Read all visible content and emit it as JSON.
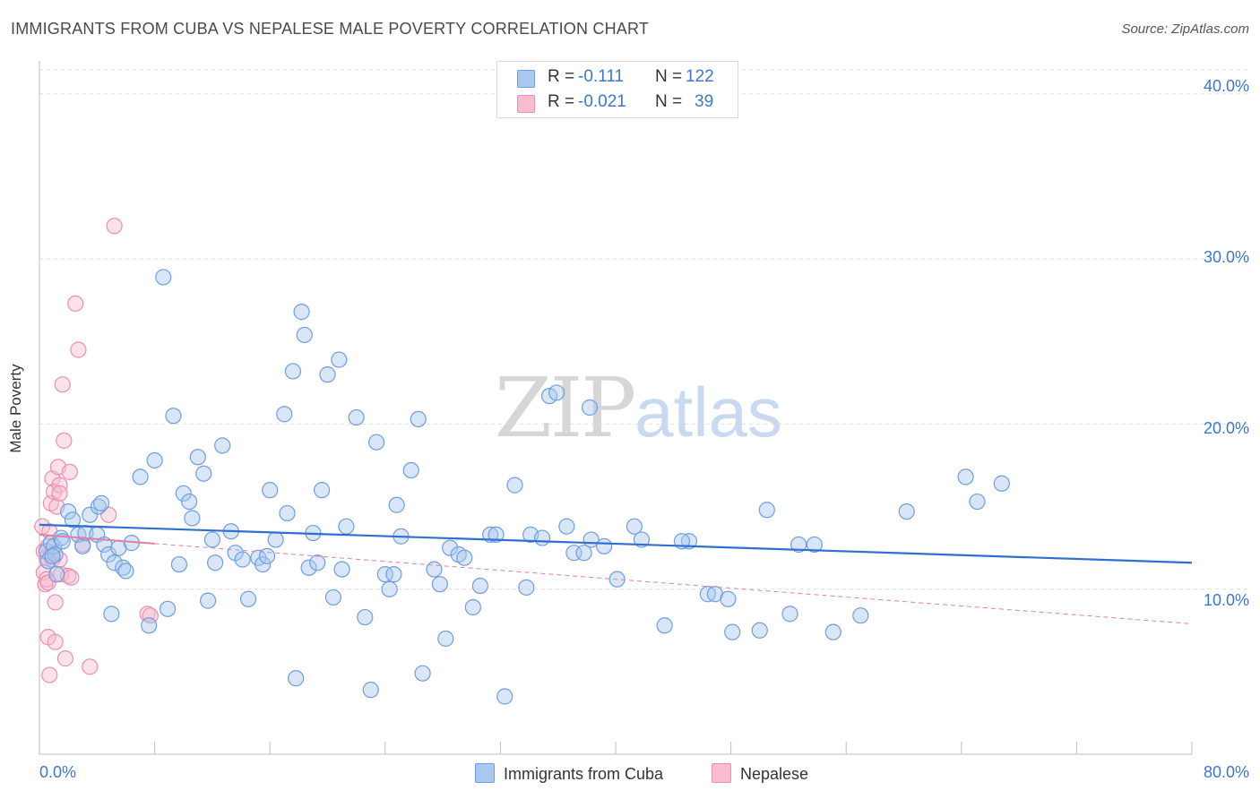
{
  "header": {
    "title": "IMMIGRANTS FROM CUBA VS NEPALESE MALE POVERTY CORRELATION CHART",
    "source": "Source: ZipAtlas.com"
  },
  "watermark": {
    "part1": "ZIP",
    "part2": "atlas"
  },
  "legend": {
    "r_label": "R =",
    "n_label": "N =",
    "series": [
      {
        "name": "Immigrants from Cuba",
        "r": "-0.111",
        "n": "122",
        "fill": "#a9c8f0",
        "stroke": "#6e9ee0"
      },
      {
        "name": "Nepalese",
        "r": "-0.021",
        "n": "39",
        "fill": "#f7bccf",
        "stroke": "#ec8fb0"
      }
    ]
  },
  "colors": {
    "blue_line": "#2f6fcf",
    "pink_line": "#e37fa0",
    "tick_text": "#3d78c9",
    "grid": "#dddddd"
  },
  "chart_data": {
    "type": "scatter",
    "title": "IMMIGRANTS FROM CUBA VS NEPALESE MALE POVERTY CORRELATION CHART",
    "xlabel": "",
    "ylabel": "Male Poverty",
    "xlim": [
      0,
      80
    ],
    "ylim": [
      0,
      42
    ],
    "x_tick_labels": [
      "0.0%",
      "80.0%"
    ],
    "y_ticks": [
      10,
      20,
      30,
      40
    ],
    "y_tick_labels": [
      "10.0%",
      "20.0%",
      "30.0%",
      "40.0%"
    ],
    "grid": true,
    "series": [
      {
        "name": "Immigrants from Cuba",
        "trend": {
          "x": [
            0,
            80
          ],
          "y": [
            13.9,
            11.6
          ]
        },
        "points": [
          [
            0.5,
            12.3
          ],
          [
            0.6,
            11.7
          ],
          [
            0.8,
            12.8
          ],
          [
            1.0,
            12.6
          ],
          [
            1.1,
            12.1
          ],
          [
            1.2,
            10.9
          ],
          [
            1.5,
            13.1
          ],
          [
            1.6,
            12.9
          ],
          [
            2.0,
            14.7
          ],
          [
            2.3,
            14.2
          ],
          [
            2.7,
            13.3
          ],
          [
            3.0,
            12.6
          ],
          [
            3.2,
            13.4
          ],
          [
            3.5,
            14.5
          ],
          [
            4.0,
            13.3
          ],
          [
            4.1,
            15.0
          ],
          [
            4.3,
            15.2
          ],
          [
            4.5,
            12.7
          ],
          [
            4.8,
            12.1
          ],
          [
            5.0,
            8.5
          ],
          [
            5.2,
            11.6
          ],
          [
            5.5,
            12.5
          ],
          [
            5.8,
            11.3
          ],
          [
            6.0,
            11.1
          ],
          [
            6.4,
            12.8
          ],
          [
            7.0,
            16.8
          ],
          [
            7.6,
            7.8
          ],
          [
            8.0,
            17.8
          ],
          [
            8.6,
            28.9
          ],
          [
            8.9,
            8.8
          ],
          [
            9.3,
            20.5
          ],
          [
            9.7,
            11.5
          ],
          [
            10.0,
            15.8
          ],
          [
            10.4,
            15.3
          ],
          [
            10.6,
            14.3
          ],
          [
            11.0,
            18.0
          ],
          [
            11.4,
            17.0
          ],
          [
            11.7,
            9.3
          ],
          [
            12.0,
            13.0
          ],
          [
            12.2,
            11.6
          ],
          [
            12.7,
            18.7
          ],
          [
            13.3,
            13.5
          ],
          [
            13.6,
            12.2
          ],
          [
            14.1,
            11.8
          ],
          [
            14.5,
            9.4
          ],
          [
            15.2,
            11.9
          ],
          [
            15.5,
            11.5
          ],
          [
            15.8,
            12.0
          ],
          [
            16.0,
            16.0
          ],
          [
            16.4,
            13.0
          ],
          [
            17.0,
            20.6
          ],
          [
            17.2,
            14.6
          ],
          [
            17.6,
            23.2
          ],
          [
            17.8,
            4.6
          ],
          [
            18.2,
            26.8
          ],
          [
            18.4,
            25.4
          ],
          [
            18.7,
            11.3
          ],
          [
            19.0,
            13.4
          ],
          [
            19.3,
            11.6
          ],
          [
            19.6,
            16.0
          ],
          [
            20.0,
            23.0
          ],
          [
            20.4,
            9.5
          ],
          [
            20.8,
            23.9
          ],
          [
            21.0,
            11.2
          ],
          [
            21.3,
            13.8
          ],
          [
            22.0,
            20.4
          ],
          [
            22.6,
            8.3
          ],
          [
            23.0,
            3.9
          ],
          [
            23.4,
            18.9
          ],
          [
            24.0,
            10.9
          ],
          [
            24.3,
            10.0
          ],
          [
            24.6,
            10.9
          ],
          [
            24.8,
            15.1
          ],
          [
            25.1,
            13.2
          ],
          [
            25.8,
            17.2
          ],
          [
            26.3,
            20.3
          ],
          [
            26.6,
            4.9
          ],
          [
            27.4,
            11.2
          ],
          [
            27.8,
            10.3
          ],
          [
            28.2,
            7.0
          ],
          [
            28.5,
            12.5
          ],
          [
            29.1,
            12.1
          ],
          [
            29.5,
            11.9
          ],
          [
            30.1,
            8.9
          ],
          [
            30.6,
            10.2
          ],
          [
            31.3,
            13.3
          ],
          [
            31.7,
            13.3
          ],
          [
            32.3,
            3.5
          ],
          [
            33.0,
            16.3
          ],
          [
            33.8,
            10.1
          ],
          [
            34.1,
            13.3
          ],
          [
            34.9,
            13.1
          ],
          [
            35.4,
            21.7
          ],
          [
            35.9,
            21.9
          ],
          [
            36.6,
            13.8
          ],
          [
            37.1,
            12.2
          ],
          [
            37.8,
            12.2
          ],
          [
            38.2,
            21.0
          ],
          [
            38.3,
            13.0
          ],
          [
            39.2,
            12.6
          ],
          [
            40.1,
            10.6
          ],
          [
            41.3,
            13.8
          ],
          [
            41.8,
            13.0
          ],
          [
            43.4,
            7.8
          ],
          [
            45.1,
            12.9
          ],
          [
            46.4,
            9.7
          ],
          [
            46.9,
            9.7
          ],
          [
            47.8,
            9.4
          ],
          [
            48.1,
            7.4
          ],
          [
            50.0,
            7.5
          ],
          [
            50.5,
            14.8
          ],
          [
            52.1,
            8.5
          ],
          [
            52.7,
            12.7
          ],
          [
            53.8,
            12.7
          ],
          [
            55.1,
            7.4
          ],
          [
            57.0,
            8.4
          ],
          [
            60.2,
            14.7
          ],
          [
            64.3,
            16.8
          ],
          [
            65.1,
            15.3
          ],
          [
            66.8,
            16.4
          ],
          [
            44.6,
            12.9
          ],
          [
            0.9,
            12.0
          ]
        ]
      },
      {
        "name": "Nepalese",
        "trend": {
          "x": [
            0,
            80
          ],
          "y": [
            13.3,
            7.9
          ]
        },
        "trend_solid_until_x": 8,
        "points": [
          [
            0.2,
            13.8
          ],
          [
            0.3,
            12.3
          ],
          [
            0.3,
            11.0
          ],
          [
            0.4,
            10.3
          ],
          [
            0.5,
            11.9
          ],
          [
            0.5,
            10.6
          ],
          [
            0.6,
            10.4
          ],
          [
            0.6,
            12.6
          ],
          [
            0.6,
            7.1
          ],
          [
            0.7,
            4.8
          ],
          [
            0.7,
            13.5
          ],
          [
            0.8,
            15.2
          ],
          [
            0.8,
            12.0
          ],
          [
            0.9,
            16.7
          ],
          [
            0.9,
            11.8
          ],
          [
            0.9,
            12.2
          ],
          [
            1.0,
            15.9
          ],
          [
            1.1,
            9.2
          ],
          [
            1.1,
            6.8
          ],
          [
            1.2,
            15.0
          ],
          [
            1.3,
            17.4
          ],
          [
            1.4,
            16.3
          ],
          [
            1.4,
            15.8
          ],
          [
            1.4,
            11.8
          ],
          [
            1.5,
            10.9
          ],
          [
            1.6,
            22.4
          ],
          [
            1.7,
            19.0
          ],
          [
            1.8,
            5.8
          ],
          [
            2.0,
            10.8
          ],
          [
            2.1,
            17.1
          ],
          [
            2.2,
            10.7
          ],
          [
            2.5,
            27.3
          ],
          [
            2.7,
            24.5
          ],
          [
            3.0,
            12.7
          ],
          [
            3.5,
            5.3
          ],
          [
            4.8,
            14.5
          ],
          [
            5.2,
            32.0
          ],
          [
            7.5,
            8.5
          ],
          [
            7.7,
            8.4
          ]
        ]
      }
    ]
  }
}
